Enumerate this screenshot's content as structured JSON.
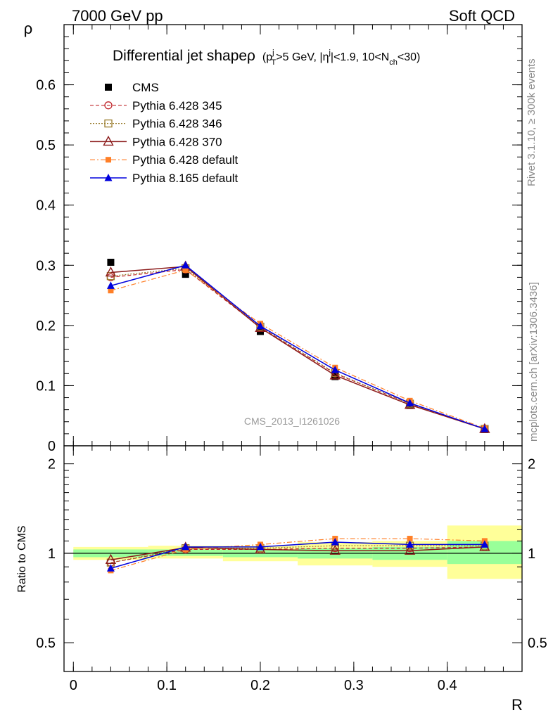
{
  "header": {
    "energy_label": "7000 GeV pp",
    "category_label": "Soft QCD"
  },
  "side_labels": {
    "rivet": "Rivet 3.1.10, ≥ 300k events",
    "mcplots": "mcplots.cern.ch [arXiv:1306.3436]"
  },
  "watermark": "CMS_2013_I1261026",
  "colors": {
    "cms": "#000000",
    "p345": "#c0282d",
    "p346": "#9a7d2e",
    "p370": "#8b1a1a",
    "p6def": "#ff7f27",
    "p8def": "#0000dd",
    "band_inner": "#99ff99",
    "band_outer": "#ffff99"
  },
  "chart_data": [
    {
      "type": "line",
      "panel": "main",
      "title": "Differential jet shapeρ",
      "title_detail": "(p_T^j>5 GeV, |η^j|<1.9, 10<N_ch<30)",
      "ylabel": "ρ",
      "xlim": [
        -0.01,
        0.48
      ],
      "ylim": [
        0,
        0.7
      ],
      "yticks": [
        0,
        0.1,
        0.2,
        0.3,
        0.4,
        0.5,
        0.6
      ],
      "ytick_labels": [
        "0",
        "0.1",
        "0.2",
        "0.3",
        "0.4",
        "0.5",
        "0.6"
      ],
      "x": [
        0.04,
        0.12,
        0.2,
        0.28,
        0.36,
        0.44
      ],
      "series": [
        {
          "name": "CMS",
          "key": "cms",
          "values": [
            0.305,
            0.285,
            0.19,
            0.115,
            0.067,
            0.027
          ]
        },
        {
          "name": "Pythia 6.428 345",
          "key": "p345",
          "values": [
            0.28,
            0.293,
            0.197,
            0.12,
            0.07,
            0.028
          ]
        },
        {
          "name": "Pythia 6.428 346",
          "key": "p346",
          "values": [
            0.282,
            0.295,
            0.198,
            0.121,
            0.07,
            0.028
          ]
        },
        {
          "name": "Pythia 6.428 370",
          "key": "p370",
          "values": [
            0.288,
            0.298,
            0.196,
            0.117,
            0.068,
            0.028
          ]
        },
        {
          "name": "Pythia 6.428 default",
          "key": "p6def",
          "values": [
            0.258,
            0.292,
            0.203,
            0.13,
            0.075,
            0.029
          ]
        },
        {
          "name": "Pythia 8.165 default",
          "key": "p8def",
          "values": [
            0.266,
            0.3,
            0.199,
            0.126,
            0.071,
            0.028
          ]
        }
      ]
    },
    {
      "type": "line",
      "panel": "ratio",
      "ylabel": "Ratio to CMS",
      "xlabel": "R",
      "xlim": [
        -0.01,
        0.48
      ],
      "xticks": [
        0,
        0.1,
        0.2,
        0.3,
        0.4
      ],
      "xtick_labels": [
        "0",
        "0.1",
        "0.2",
        "0.3",
        "0.4"
      ],
      "ylim": [
        0.4,
        2.3
      ],
      "yticks": [
        0.5,
        1,
        2
      ],
      "ytick_labels": [
        "0.5",
        "1",
        "2"
      ],
      "x": [
        0.04,
        0.12,
        0.2,
        0.28,
        0.36,
        0.44
      ],
      "bins": [
        {
          "lo": 0.0,
          "hi": 0.08,
          "inner": [
            0.97,
            1.03
          ],
          "outer": [
            0.95,
            1.05
          ]
        },
        {
          "lo": 0.08,
          "hi": 0.16,
          "inner": [
            0.98,
            1.03
          ],
          "outer": [
            0.96,
            1.06
          ]
        },
        {
          "lo": 0.16,
          "hi": 0.24,
          "inner": [
            0.97,
            1.03
          ],
          "outer": [
            0.94,
            1.06
          ]
        },
        {
          "lo": 0.24,
          "hi": 0.32,
          "inner": [
            0.96,
            1.04
          ],
          "outer": [
            0.91,
            1.09
          ]
        },
        {
          "lo": 0.32,
          "hi": 0.4,
          "inner": [
            0.95,
            1.05
          ],
          "outer": [
            0.9,
            1.1
          ]
        },
        {
          "lo": 0.4,
          "hi": 0.48,
          "inner": [
            0.92,
            1.1
          ],
          "outer": [
            0.82,
            1.24
          ]
        }
      ],
      "series": [
        {
          "name": "Pythia 6.428 345",
          "key": "p345",
          "values": [
            0.93,
            1.03,
            1.03,
            1.04,
            1.04,
            1.05
          ]
        },
        {
          "name": "Pythia 6.428 346",
          "key": "p346",
          "values": [
            0.93,
            1.04,
            1.04,
            1.06,
            1.06,
            1.06
          ]
        },
        {
          "name": "Pythia 6.428 370",
          "key": "p370",
          "values": [
            0.95,
            1.045,
            1.03,
            1.02,
            1.02,
            1.05
          ]
        },
        {
          "name": "Pythia 6.428 default",
          "key": "p6def",
          "values": [
            0.875,
            1.03,
            1.07,
            1.12,
            1.12,
            1.1
          ]
        },
        {
          "name": "Pythia 8.165 default",
          "key": "p8def",
          "values": [
            0.89,
            1.05,
            1.05,
            1.09,
            1.07,
            1.07
          ]
        }
      ]
    }
  ]
}
